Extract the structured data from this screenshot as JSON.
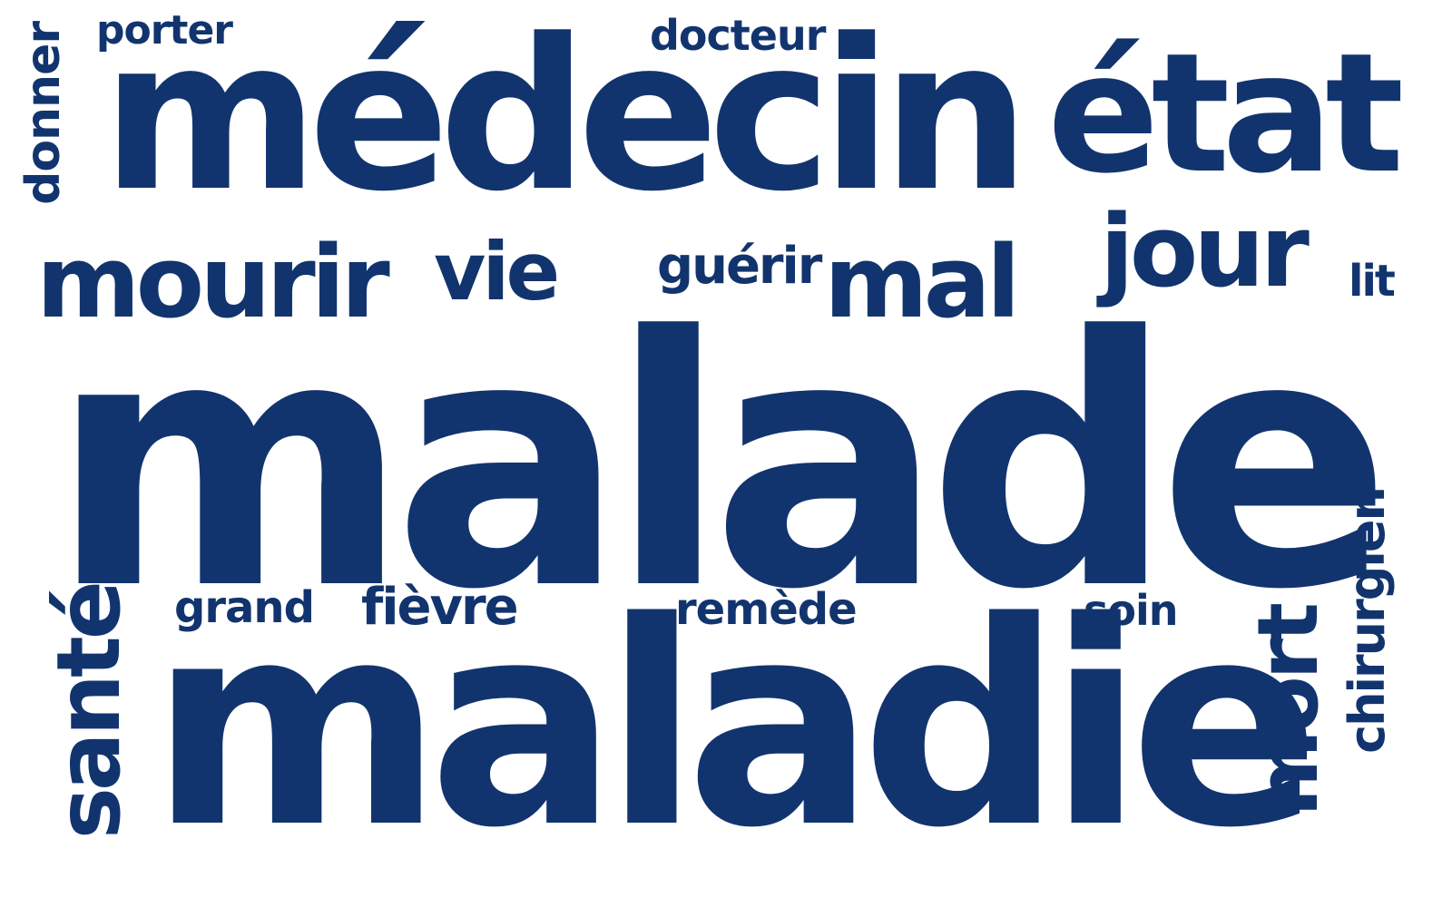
{
  "word_cloud": {
    "color": "#12346e",
    "words": {
      "malade": "malade",
      "maladie": "maladie",
      "medecin": "médecin",
      "etat": "état",
      "mourir": "mourir",
      "vie": "vie",
      "guerir": "guérir",
      "mal": "mal",
      "jour": "jour",
      "lit": "lit",
      "donner": "donner",
      "porter": "porter",
      "docteur": "docteur",
      "sante": "santé",
      "grand": "grand",
      "fievre": "fièvre",
      "remede": "remède",
      "soin": "soin",
      "mort": "mort",
      "chirurgien": "chirurgien"
    }
  }
}
